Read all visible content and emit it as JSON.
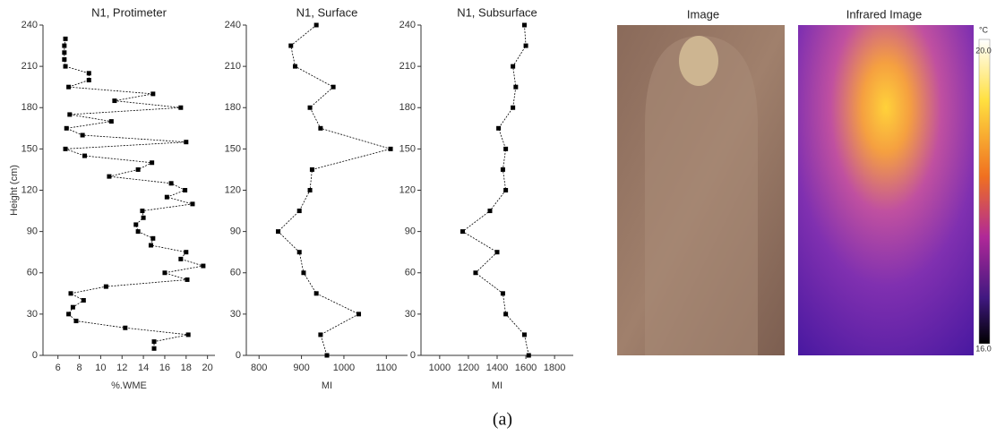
{
  "chart_data": [
    {
      "type": "line",
      "title": "N1, Protimeter",
      "x_label": "%.WME",
      "y_label": "Height (cm)",
      "x": [
        6.7,
        6.6,
        6.6,
        6.6,
        6.7,
        8.9,
        8.9,
        7.0,
        14.9,
        11.3,
        17.5,
        7.1,
        11.0,
        6.8,
        8.3,
        18.0,
        6.7,
        8.5,
        14.8,
        13.5,
        10.8,
        16.6,
        17.9,
        16.2,
        18.6,
        13.9,
        14.0,
        13.3,
        13.5,
        14.9,
        14.7,
        18.0,
        17.5,
        19.6,
        16.0,
        18.1,
        10.5,
        7.2,
        8.4,
        7.4,
        7.0,
        7.7,
        12.3,
        18.2,
        15.0,
        15.0
      ],
      "y": [
        230,
        225,
        220,
        215,
        210,
        205,
        200,
        195,
        190,
        185,
        180,
        175,
        170,
        165,
        160,
        155,
        150,
        145,
        140,
        135,
        130,
        125,
        120,
        115,
        110,
        105,
        100,
        95,
        90,
        85,
        80,
        75,
        70,
        65,
        60,
        55,
        50,
        45,
        40,
        35,
        30,
        25,
        20,
        15,
        10,
        5
      ],
      "xlim": [
        4.6,
        20.7
      ],
      "xticks": [
        6,
        8,
        10,
        12,
        14,
        16,
        18,
        20
      ],
      "ylim": [
        0,
        240
      ],
      "yticks": [
        0,
        30,
        60,
        90,
        120,
        150,
        180,
        210,
        240
      ],
      "color": "#000000"
    },
    {
      "type": "line",
      "title": "N1, Surface",
      "x_label": "MI",
      "x": [
        935,
        875,
        885,
        975,
        920,
        945,
        1110,
        925,
        920,
        895,
        845,
        895,
        905,
        935,
        1035,
        945,
        960
      ],
      "y": [
        240,
        225,
        210,
        195,
        180,
        165,
        150,
        135,
        120,
        105,
        90,
        75,
        60,
        45,
        30,
        15,
        0
      ],
      "xlim": [
        770,
        1150
      ],
      "xticks": [
        800,
        900,
        1000,
        1100
      ],
      "ylim": [
        0,
        240
      ],
      "yticks": [
        0,
        30,
        60,
        90,
        120,
        150,
        180,
        210,
        240
      ],
      "color": "#000000"
    },
    {
      "type": "line",
      "title": "N1, Subsurface",
      "x_label": "MI",
      "x": [
        1590,
        1600,
        1510,
        1530,
        1510,
        1410,
        1460,
        1440,
        1460,
        1350,
        1160,
        1400,
        1250,
        1440,
        1460,
        1590,
        1620
      ],
      "y": [
        240,
        225,
        210,
        195,
        180,
        165,
        150,
        135,
        120,
        105,
        90,
        75,
        60,
        45,
        30,
        15,
        0
      ],
      "xlim": [
        870,
        1930
      ],
      "xticks": [
        1000,
        1200,
        1400,
        1600,
        1800
      ],
      "ylim": [
        0,
        240
      ],
      "yticks": [
        0,
        30,
        60,
        90,
        120,
        150,
        180,
        210,
        240
      ],
      "color": "#000000"
    }
  ],
  "images": [
    {
      "title": "Image"
    },
    {
      "title": "Infrared Image",
      "colorbar": {
        "unit": "°C",
        "max_label": "20.0",
        "min_label": "16.0"
      }
    }
  ],
  "caption": "(a)"
}
